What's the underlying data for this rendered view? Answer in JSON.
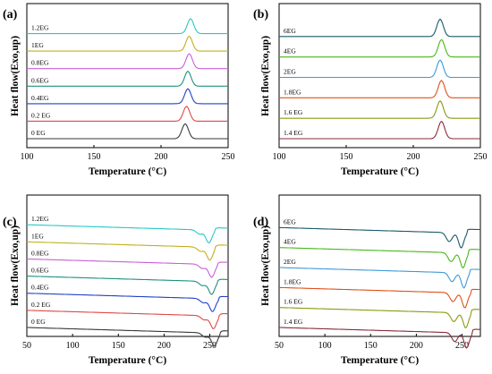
{
  "chart_data": [
    {
      "panel": "(a)",
      "type": "line",
      "kind": "heating",
      "xlabel": "Temperature (°C)",
      "ylabel": "Heat flow(Exo,up)",
      "xlim": [
        100,
        250
      ],
      "xticks": [
        100,
        150,
        200,
        250
      ],
      "peak_shape": "endotherm_single",
      "series": [
        {
          "name": "0 EG",
          "color": "#3a3a3a",
          "peak_x": 218
        },
        {
          "name": "0.2 EG",
          "color": "#e04848",
          "peak_x": 219
        },
        {
          "name": "0.4EG",
          "color": "#2340c8",
          "peak_x": 220
        },
        {
          "name": "0.6EG",
          "color": "#1f9080",
          "peak_x": 220
        },
        {
          "name": "0.8EG",
          "color": "#c860d8",
          "peak_x": 221
        },
        {
          "name": "1EG",
          "color": "#c0b020",
          "peak_x": 221
        },
        {
          "name": "1.2EG",
          "color": "#28c8c8",
          "peak_x": 222
        }
      ]
    },
    {
      "panel": "(b)",
      "type": "line",
      "kind": "heating",
      "xlabel": "Temperature (°C)",
      "ylabel": "Heat flow(Exo,up)",
      "xlim": [
        100,
        250
      ],
      "xticks": [
        100,
        150,
        200,
        250
      ],
      "peak_shape": "endotherm_single",
      "series": [
        {
          "name": "1.4 EG",
          "color": "#8a2a3a",
          "peak_x": 221
        },
        {
          "name": "1.6 EG",
          "color": "#8a9a10",
          "peak_x": 220
        },
        {
          "name": "1.8EG",
          "color": "#e05018",
          "peak_x": 221
        },
        {
          "name": "2EG",
          "color": "#3c9ad8",
          "peak_x": 220
        },
        {
          "name": "4EG",
          "color": "#48b818",
          "peak_x": 221
        },
        {
          "name": "6EG",
          "color": "#1a5a6a",
          "peak_x": 220
        }
      ]
    },
    {
      "panel": "(c)",
      "type": "line",
      "kind": "cooling",
      "xlabel": "Temperature (°C)",
      "ylabel": "Heat flow(Exo,up)",
      "xlim": [
        50,
        270
      ],
      "xticks": [
        50,
        100,
        150,
        200,
        250
      ],
      "peak_shape": "melting_dip",
      "series": [
        {
          "name": "0 EG",
          "color": "#3a3a3a",
          "peak_x": 255
        },
        {
          "name": "0.2 EG",
          "color": "#e04848",
          "peak_x": 254
        },
        {
          "name": "0.4EG",
          "color": "#2340c8",
          "peak_x": 253
        },
        {
          "name": "0.6EG",
          "color": "#1f9080",
          "peak_x": 252
        },
        {
          "name": "0.8EG",
          "color": "#c860d8",
          "peak_x": 252
        },
        {
          "name": "1EG",
          "color": "#c0b020",
          "peak_x": 250
        },
        {
          "name": "1.2EG",
          "color": "#28c8c8",
          "peak_x": 249
        }
      ]
    },
    {
      "panel": "(d)",
      "type": "line",
      "kind": "cooling",
      "xlabel": "Temperature (°C)",
      "ylabel": "Heat flow(Exo,up)",
      "xlim": [
        50,
        270
      ],
      "xticks": [
        50,
        100,
        150,
        200,
        250
      ],
      "peak_shape": "double_dip",
      "series": [
        {
          "name": "1.4 EG",
          "color": "#8a2a3a",
          "peak_x": 255
        },
        {
          "name": "1.6 EG",
          "color": "#8a9a10",
          "peak_x": 254
        },
        {
          "name": "1.8EG",
          "color": "#e05018",
          "peak_x": 253
        },
        {
          "name": "2EG",
          "color": "#3c9ad8",
          "peak_x": 252
        },
        {
          "name": "4EG",
          "color": "#48b818",
          "peak_x": 251
        },
        {
          "name": "6EG",
          "color": "#1a5a6a",
          "peak_x": 249
        }
      ]
    }
  ]
}
